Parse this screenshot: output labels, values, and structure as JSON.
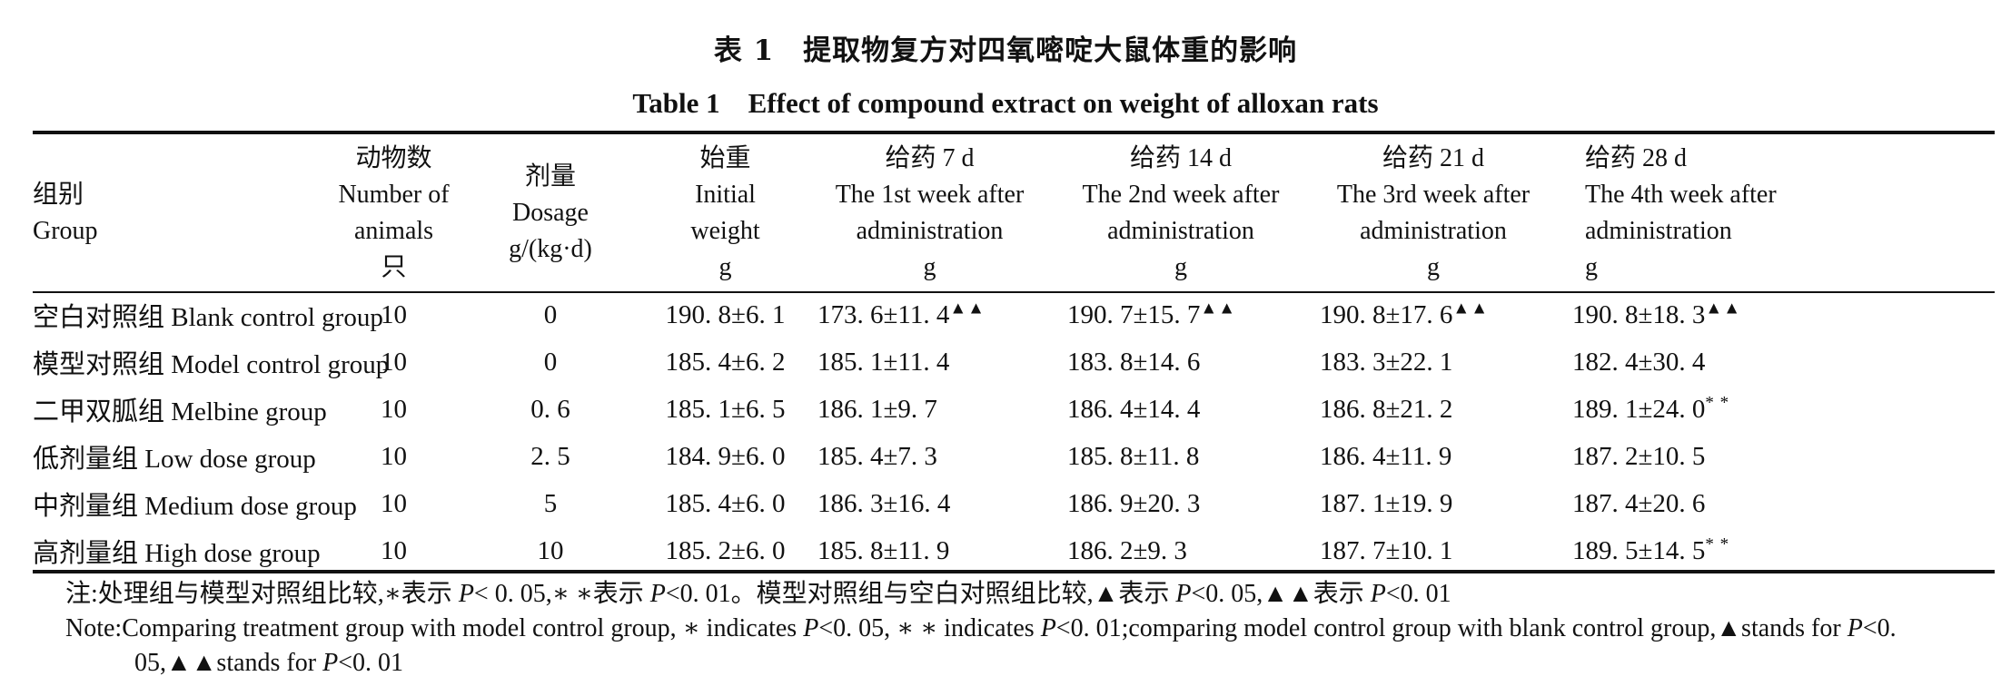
{
  "title_cn": "表 1　提取物复方对四氧嘧啶大鼠体重的影响",
  "title_en": "Table 1　Effect of compound extract on weight of alloxan rats",
  "columns": [
    {
      "lines": [
        "组别",
        "Group"
      ]
    },
    {
      "lines": [
        "动物数",
        "Number of",
        "animals",
        "只"
      ]
    },
    {
      "lines": [
        "剂量",
        "Dosage",
        "g/(kg·d)"
      ]
    },
    {
      "lines": [
        "始重",
        "Initial",
        "weight",
        "g"
      ]
    },
    {
      "lines": [
        "给药 7 d",
        "The 1st week after",
        "administration",
        "g"
      ]
    },
    {
      "lines": [
        "给药 14 d",
        "The 2nd week after",
        "administration",
        "g"
      ]
    },
    {
      "lines": [
        "给药 21 d",
        "The 3rd week after",
        "administration",
        "g"
      ]
    },
    {
      "lines": [
        "给药 28 d",
        "The 4th week after",
        "administration",
        "g"
      ]
    }
  ],
  "rows": [
    {
      "group": "空白对照组 Blank control group",
      "n": "10",
      "dose": "0",
      "initial": "190. 8±6. 1",
      "w1": "173. 6±11. 4",
      "w1_mark": "▲▲",
      "w2": "190. 7±15. 7",
      "w2_mark": "▲▲",
      "w3": "190. 8±17. 6",
      "w3_mark": "▲▲",
      "w4": "190. 8±18. 3",
      "w4_mark": "▲▲"
    },
    {
      "group": "模型对照组 Model control group",
      "n": "10",
      "dose": "0",
      "initial": "185. 4±6. 2",
      "w1": "185. 1±11. 4",
      "w2": "183. 8±14. 6",
      "w3": "183. 3±22. 1",
      "w4": "182. 4±30. 4"
    },
    {
      "group": "二甲双胍组 Melbine group",
      "n": "10",
      "dose": "0. 6",
      "initial": "185. 1±6. 5",
      "w1": "186. 1±9. 7",
      "w2": "186. 4±14. 4",
      "w3": "186. 8±21. 2",
      "w4": "189. 1±24. 0",
      "w4_mark": "* *"
    },
    {
      "group": "低剂量组 Low dose group",
      "n": "10",
      "dose": "2. 5",
      "initial": "184. 9±6. 0",
      "w1": "185. 4±7. 3",
      "w2": "185. 8±11. 8",
      "w3": "186. 4±11. 9",
      "w4": "187. 2±10. 5"
    },
    {
      "group": "中剂量组 Medium dose group",
      "n": "10",
      "dose": "5",
      "initial": "185. 4±6. 0",
      "w1": "186. 3±16. 4",
      "w2": "186. 9±20. 3",
      "w3": "187. 1±19. 9",
      "w4": "187. 4±20. 6"
    },
    {
      "group": "高剂量组 High dose group",
      "n": "10",
      "dose": "10",
      "initial": "185. 2±6. 0",
      "w1": "185. 8±11. 9",
      "w2": "186. 2±9. 3",
      "w3": "187. 7±10. 1",
      "w4": "189. 5±14. 5",
      "w4_mark": "* *"
    }
  ],
  "notes": {
    "cn_prefix": "注:处理组与模型对照组比较,∗表示 ",
    "cn_p1": "P",
    "cn_mid1": "< 0. 05,∗ ∗表示 ",
    "cn_p2": "P",
    "cn_mid2": "<0. 01。模型对照组与空白对照组比较,▲表示 ",
    "cn_p3": "P",
    "cn_mid3": "<0. 05,▲▲表示 ",
    "cn_p4": "P",
    "cn_end": "<0. 01",
    "en_prefix": "Note:Comparing treatment group with model control group, ∗ indicates ",
    "en_p1": "P",
    "en_mid1": "<0. 05, ∗ ∗ indicates ",
    "en_p2": "P",
    "en_mid2": "<0. 01;comparing model control group with blank control group,▲stands for ",
    "en_p3": "P",
    "en_mid3": "<0. 05,▲▲stands for ",
    "en_p4": "P",
    "en_end": "<0. 01"
  }
}
